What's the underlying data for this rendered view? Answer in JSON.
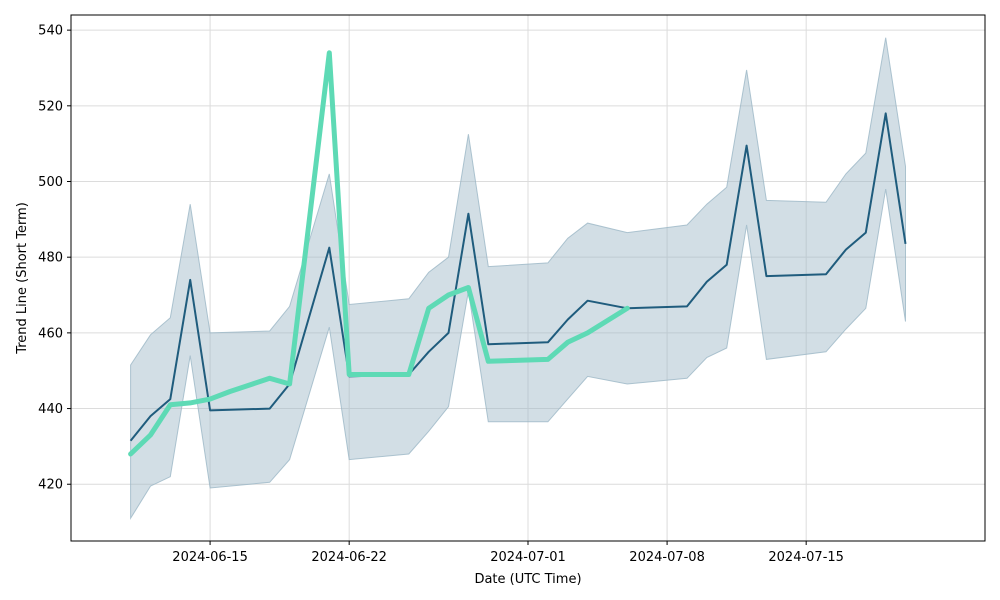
{
  "chart_data": {
    "type": "line",
    "title": "",
    "xlabel": "Date (UTC Time)",
    "ylabel": "Trend Line (Short Term)",
    "xlim": [
      "2024-06-08",
      "2024-07-24"
    ],
    "ylim": [
      405,
      544
    ],
    "x_ticks": [
      "2024-06-15",
      "2024-06-22",
      "2024-07-01",
      "2024-07-08",
      "2024-07-15"
    ],
    "y_ticks": [
      420,
      440,
      460,
      480,
      500,
      520,
      540
    ],
    "grid": true,
    "legend": "none",
    "colors": {
      "band": "#9bb6c6",
      "trend": "#1f5c7d",
      "highlight": "#5edab5"
    },
    "series": [
      {
        "role": "trend",
        "x": [
          "2024-06-11",
          "2024-06-12",
          "2024-06-13",
          "2024-06-14",
          "2024-06-15",
          "2024-06-18",
          "2024-06-19",
          "2024-06-21",
          "2024-06-22",
          "2024-06-25",
          "2024-06-26",
          "2024-06-27",
          "2024-06-28",
          "2024-06-29",
          "2024-07-02",
          "2024-07-03",
          "2024-07-04",
          "2024-07-06",
          "2024-07-09",
          "2024-07-10",
          "2024-07-11",
          "2024-07-12",
          "2024-07-13",
          "2024-07-16",
          "2024-07-17",
          "2024-07-18",
          "2024-07-19",
          "2024-07-20"
        ],
        "y": [
          431.5,
          438,
          442.5,
          474,
          439.5,
          440,
          446.5,
          482.5,
          448.5,
          449,
          455,
          460,
          491.5,
          457,
          457.5,
          463.5,
          468.5,
          466.5,
          467,
          473.5,
          478,
          509.5,
          475,
          475.5,
          482,
          486.5,
          518,
          483.5
        ]
      },
      {
        "role": "band-upper",
        "x": [
          "2024-06-11",
          "2024-06-12",
          "2024-06-13",
          "2024-06-14",
          "2024-06-15",
          "2024-06-18",
          "2024-06-19",
          "2024-06-21",
          "2024-06-22",
          "2024-06-25",
          "2024-06-26",
          "2024-06-27",
          "2024-06-28",
          "2024-06-29",
          "2024-07-02",
          "2024-07-03",
          "2024-07-04",
          "2024-07-06",
          "2024-07-09",
          "2024-07-10",
          "2024-07-11",
          "2024-07-12",
          "2024-07-13",
          "2024-07-16",
          "2024-07-17",
          "2024-07-18",
          "2024-07-19",
          "2024-07-20"
        ],
        "y": [
          451.5,
          459.5,
          464,
          494,
          460,
          460.5,
          467,
          502,
          467.5,
          469,
          476,
          480,
          512.5,
          477.5,
          478.5,
          485,
          489,
          486.5,
          488.5,
          494,
          498.5,
          529.5,
          495,
          494.5,
          502,
          507.5,
          538,
          504
        ]
      },
      {
        "role": "band-lower",
        "x": [
          "2024-06-11",
          "2024-06-12",
          "2024-06-13",
          "2024-06-14",
          "2024-06-15",
          "2024-06-18",
          "2024-06-19",
          "2024-06-21",
          "2024-06-22",
          "2024-06-25",
          "2024-06-26",
          "2024-06-27",
          "2024-06-28",
          "2024-06-29",
          "2024-07-02",
          "2024-07-03",
          "2024-07-04",
          "2024-07-06",
          "2024-07-09",
          "2024-07-10",
          "2024-07-11",
          "2024-07-12",
          "2024-07-13",
          "2024-07-16",
          "2024-07-17",
          "2024-07-18",
          "2024-07-19",
          "2024-07-20"
        ],
        "y": [
          411,
          419.5,
          422,
          454,
          419,
          420.5,
          426.5,
          461.5,
          426.5,
          428,
          434,
          440.5,
          471,
          436.5,
          436.5,
          442.5,
          448.5,
          446.5,
          448,
          453.5,
          456,
          488.5,
          453,
          455,
          461,
          466.5,
          498,
          463
        ]
      },
      {
        "role": "highlight",
        "x": [
          "2024-06-11",
          "2024-06-12",
          "2024-06-13",
          "2024-06-14",
          "2024-06-15",
          "2024-06-16",
          "2024-06-18",
          "2024-06-19",
          "2024-06-20",
          "2024-06-21",
          "2024-06-22",
          "2024-06-25",
          "2024-06-26",
          "2024-06-27",
          "2024-06-28",
          "2024-06-29",
          "2024-07-02",
          "2024-07-03",
          "2024-07-04",
          "2024-07-06"
        ],
        "y": [
          428,
          433,
          441,
          441.5,
          442.5,
          444.5,
          448,
          446.5,
          490,
          534,
          449,
          449,
          466.5,
          470,
          472,
          452.5,
          453,
          457.5,
          460,
          466.5
        ]
      }
    ]
  }
}
